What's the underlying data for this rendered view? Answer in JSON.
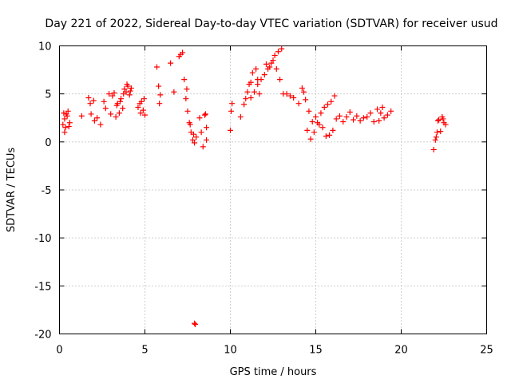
{
  "chart_data": {
    "type": "scatter",
    "title": "Day 221 of 2022, Sidereal Day-to-day VTEC variation (SDTVAR) for receiver usud",
    "xlabel": "GPS time / hours",
    "ylabel": "SDTVAR / TECUs",
    "xlim": [
      0,
      25
    ],
    "ylim": [
      -20,
      10
    ],
    "xticks": [
      0,
      5,
      10,
      15,
      20,
      25
    ],
    "yticks": [
      -20,
      -15,
      -10,
      -5,
      0,
      5,
      10
    ],
    "xtick_labels": [
      "0",
      "5",
      "10",
      "15",
      "20",
      "25"
    ],
    "ytick_labels": [
      "-20",
      "-15",
      "-10",
      "-5",
      "0",
      "5",
      "10"
    ],
    "grid": true,
    "marker": "+",
    "series": [
      {
        "name": "SDTVAR",
        "color": "#ff0000",
        "x": [
          0.2,
          0.3,
          0.35,
          0.4,
          0.5,
          0.6,
          0.3,
          0.45,
          0.55,
          0.25,
          1.3,
          1.7,
          1.8,
          2.0,
          2.2,
          1.85,
          2.05,
          2.4,
          2.6,
          2.7,
          2.9,
          3.0,
          3.1,
          3.2,
          3.3,
          3.4,
          3.5,
          3.6,
          3.7,
          3.8,
          3.9,
          4.0,
          4.1,
          4.2,
          3.35,
          3.55,
          3.75,
          3.95,
          4.15,
          4.6,
          4.7,
          4.8,
          4.9,
          5.0,
          4.75,
          4.95,
          5.7,
          5.8,
          5.9,
          5.85,
          6.5,
          6.7,
          7.0,
          7.1,
          7.2,
          7.3,
          7.4,
          7.5,
          7.6,
          7.7,
          7.8,
          7.9,
          8.0,
          7.45,
          7.65,
          7.85,
          8.2,
          8.3,
          8.5,
          8.4,
          8.6,
          8.55,
          8.6,
          7.9,
          7.95,
          10.0,
          10.05,
          10.1,
          10.6,
          10.8,
          10.9,
          11.0,
          11.1,
          11.2,
          11.3,
          11.5,
          11.6,
          11.7,
          11.2,
          11.4,
          11.6,
          11.8,
          12.0,
          12.2,
          12.4,
          12.6,
          12.8,
          13.0,
          12.1,
          12.3,
          12.5,
          12.7,
          12.9,
          13.1,
          13.3,
          13.5,
          13.7,
          14.0,
          14.2,
          14.4,
          14.6,
          14.8,
          14.3,
          14.5,
          14.7,
          14.9,
          15.1,
          15.3,
          15.5,
          15.7,
          15.9,
          16.1,
          15.0,
          15.2,
          15.4,
          15.6,
          15.8,
          16.0,
          16.2,
          16.4,
          16.6,
          16.8,
          17.0,
          17.2,
          17.4,
          17.6,
          17.8,
          18.0,
          18.2,
          18.4,
          18.6,
          18.8,
          19.0,
          19.2,
          19.4,
          18.7,
          18.9,
          21.9,
          22.0,
          22.1,
          22.2,
          22.3,
          22.4,
          22.5,
          22.6,
          22.05,
          22.15,
          22.45
        ],
        "y": [
          1.8,
          2.4,
          1.5,
          2.9,
          3.2,
          2.0,
          1.0,
          2.7,
          1.6,
          3.0,
          2.7,
          4.6,
          4.0,
          4.3,
          2.5,
          2.9,
          2.2,
          1.8,
          4.2,
          3.5,
          5.0,
          2.9,
          4.8,
          5.1,
          2.6,
          4.0,
          3.0,
          4.5,
          3.5,
          5.5,
          5.2,
          5.8,
          4.9,
          5.6,
          3.8,
          4.2,
          5.0,
          6.0,
          5.3,
          3.6,
          4.0,
          4.2,
          3.3,
          2.8,
          3.0,
          4.5,
          7.8,
          5.8,
          4.9,
          4.0,
          8.2,
          5.2,
          8.9,
          9.1,
          9.3,
          6.5,
          4.5,
          3.2,
          2.0,
          1.0,
          0.2,
          -0.1,
          0.5,
          5.5,
          1.8,
          0.8,
          2.5,
          1.0,
          2.8,
          -0.5,
          1.5,
          2.9,
          0.2,
          -18.9,
          -19.0,
          1.2,
          3.2,
          4.0,
          2.6,
          3.9,
          4.5,
          5.2,
          6.0,
          6.2,
          7.2,
          7.6,
          6.5,
          5.0,
          4.6,
          5.2,
          6.0,
          6.5,
          7.0,
          7.6,
          8.2,
          9.0,
          9.4,
          9.7,
          8.1,
          7.8,
          8.5,
          7.6,
          6.5,
          5.0,
          5.0,
          4.8,
          4.6,
          4.0,
          5.6,
          4.4,
          3.2,
          2.1,
          5.2,
          1.2,
          0.3,
          1.0,
          2.0,
          3.0,
          3.6,
          3.9,
          4.2,
          4.8,
          2.6,
          1.8,
          1.5,
          0.6,
          0.7,
          1.2,
          2.4,
          2.7,
          2.1,
          2.6,
          3.1,
          2.3,
          2.7,
          2.2,
          2.5,
          2.6,
          3.0,
          2.1,
          3.4,
          3.0,
          2.5,
          2.8,
          3.2,
          2.2,
          3.6,
          -0.8,
          0.2,
          1.0,
          2.3,
          1.1,
          2.6,
          2.0,
          1.8,
          0.5,
          2.2,
          2.4
        ]
      }
    ]
  }
}
